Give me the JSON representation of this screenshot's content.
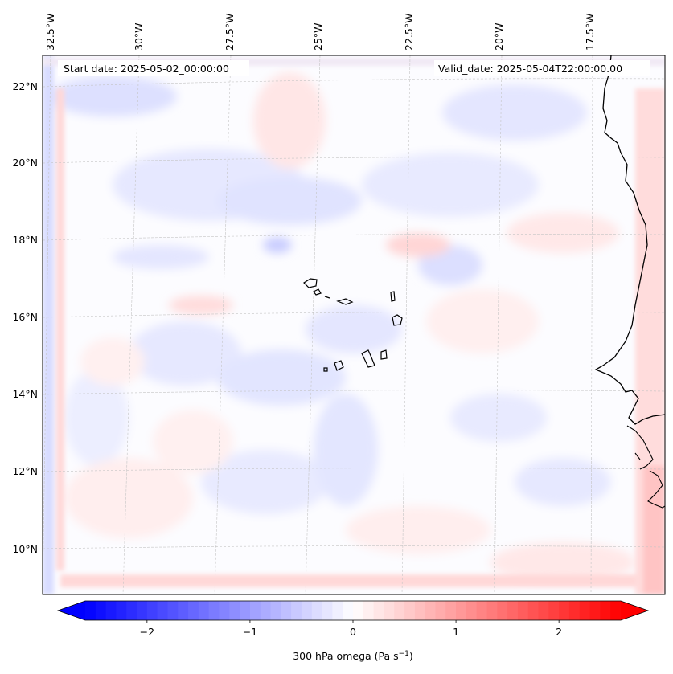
{
  "map": {
    "start_label": "Start date: 2025-05-02_00:00:00",
    "valid_label": "Valid_date: 2025-05-04T22:00:00.00",
    "lon_labels": [
      "32.5°W",
      "30°W",
      "27.5°W",
      "25°W",
      "22.5°W",
      "20°W",
      "17.5°W"
    ],
    "lat_labels": [
      "22°N",
      "20°N",
      "18°N",
      "16°N",
      "14°N",
      "12°N",
      "10°N"
    ],
    "field_colors": {
      "negative": "#0000ff",
      "zero": "#ffffff",
      "positive": "#ff0000"
    },
    "coast_color": "#000000"
  },
  "colorbar": {
    "label_main": "300 hPa omega (Pa s",
    "label_sup": "−1",
    "label_end": ")",
    "vmin": -2.6,
    "vmax": 2.6,
    "ticks": [
      {
        "value": -2,
        "label": "−2"
      },
      {
        "value": -1,
        "label": "−1"
      },
      {
        "value": 0,
        "label": "0"
      },
      {
        "value": 1,
        "label": "1"
      },
      {
        "value": 2,
        "label": "2"
      }
    ]
  }
}
